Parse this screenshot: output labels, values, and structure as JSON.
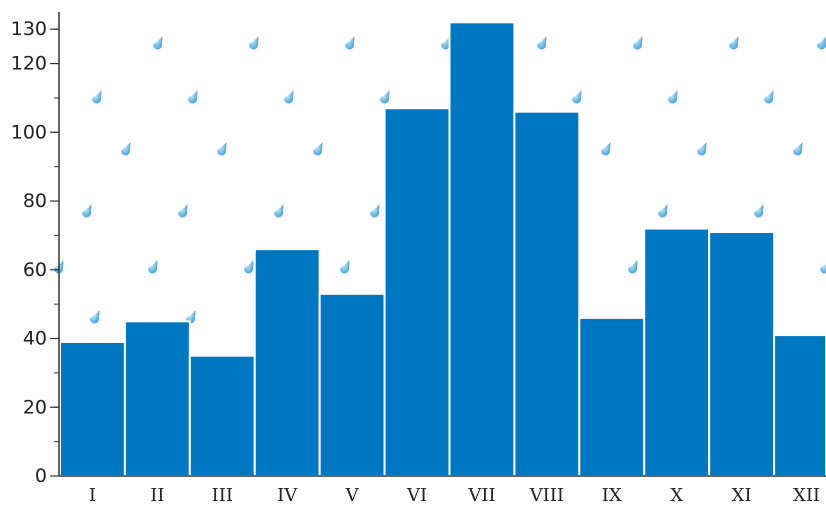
{
  "chart_data": {
    "type": "bar",
    "title": "",
    "xlabel": "",
    "ylabel": "",
    "categories": [
      "I",
      "II",
      "III",
      "IV",
      "V",
      "VI",
      "VII",
      "VIII",
      "IX",
      "X",
      "XI",
      "XII"
    ],
    "values": [
      39,
      45,
      35,
      66,
      53,
      107,
      132,
      106,
      46,
      72,
      71,
      41
    ],
    "ylim": [
      0,
      135
    ],
    "yticks": [
      "0",
      "20",
      "40",
      "60",
      "80",
      "100",
      "120",
      "130"
    ],
    "grid": false,
    "legend": "none",
    "background_pattern": "raindrop-icon",
    "colors": {
      "bar": "#0077c2",
      "bar_border": "#ffffff",
      "raindrop": "#4aa8dc",
      "axis": "#333333",
      "background": "#ffffff"
    }
  }
}
